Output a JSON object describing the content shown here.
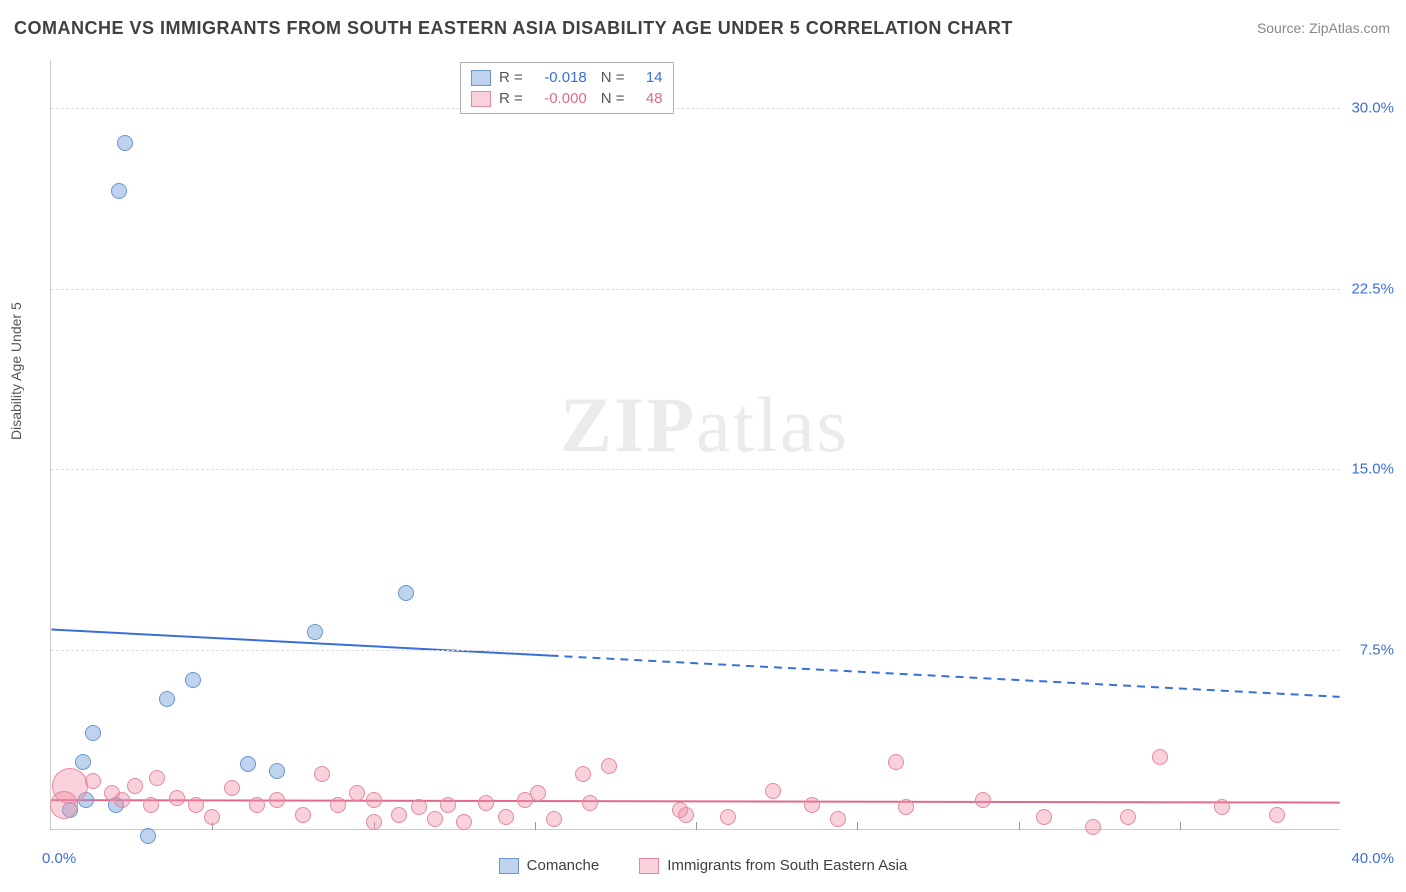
{
  "title": "COMANCHE VS IMMIGRANTS FROM SOUTH EASTERN ASIA DISABILITY AGE UNDER 5 CORRELATION CHART",
  "source_label": "Source: ZipAtlas.com",
  "ylabel": "Disability Age Under 5",
  "watermark": {
    "bold": "ZIP",
    "rest": "atlas"
  },
  "chart": {
    "type": "scatter",
    "xlim": [
      0,
      40
    ],
    "ylim": [
      0,
      32
    ],
    "x_tick_left": "0.0%",
    "x_tick_right": "40.0%",
    "x_minor_ticks": [
      5,
      10,
      15,
      20,
      25,
      30,
      35
    ],
    "y_ticks": [
      {
        "v": 7.5,
        "label": "7.5%"
      },
      {
        "v": 15.0,
        "label": "15.0%"
      },
      {
        "v": 22.5,
        "label": "22.5%"
      },
      {
        "v": 30.0,
        "label": "30.0%"
      }
    ],
    "background_color": "#ffffff",
    "grid_color": "#dddddd",
    "series": [
      {
        "name": "Comanche",
        "color_fill": "rgba(114,158,220,0.45)",
        "color_stroke": "#6a95d0",
        "value_color": "#3a6fd8",
        "marker_radius": 8,
        "R": "-0.018",
        "N": "14",
        "trend": {
          "y_at_x0": 8.3,
          "y_at_x40": 5.5,
          "solid_until_x": 15.5,
          "stroke": "#3a6fd8",
          "width": 2
        },
        "points": [
          {
            "x": 2.3,
            "y": 28.5
          },
          {
            "x": 2.1,
            "y": 26.5
          },
          {
            "x": 11.0,
            "y": 9.8
          },
          {
            "x": 8.2,
            "y": 8.2
          },
          {
            "x": 4.4,
            "y": 6.2
          },
          {
            "x": 3.6,
            "y": 5.4
          },
          {
            "x": 1.3,
            "y": 4.0
          },
          {
            "x": 6.1,
            "y": 2.7
          },
          {
            "x": 7.0,
            "y": 2.4
          },
          {
            "x": 1.0,
            "y": 2.8
          },
          {
            "x": 1.1,
            "y": 1.2
          },
          {
            "x": 2.0,
            "y": 1.0
          },
          {
            "x": 3.0,
            "y": -0.3
          },
          {
            "x": 0.6,
            "y": 0.8
          }
        ]
      },
      {
        "name": "Immigrants from South Eastern Asia",
        "color_fill": "rgba(240,140,165,0.40)",
        "color_stroke": "#e48aa0",
        "value_color": "#e06a8a",
        "marker_radius": 8,
        "R": "-0.000",
        "N": "48",
        "trend": {
          "y_at_x0": 1.2,
          "y_at_x40": 1.1,
          "solid_until_x": 40,
          "stroke": "#e06a8a",
          "width": 2
        },
        "points": [
          {
            "x": 0.6,
            "y": 1.8,
            "r": 18
          },
          {
            "x": 0.4,
            "y": 1.0,
            "r": 14
          },
          {
            "x": 1.3,
            "y": 2.0
          },
          {
            "x": 1.9,
            "y": 1.5
          },
          {
            "x": 2.2,
            "y": 1.2
          },
          {
            "x": 2.6,
            "y": 1.8
          },
          {
            "x": 3.1,
            "y": 1.0
          },
          {
            "x": 3.3,
            "y": 2.1
          },
          {
            "x": 3.9,
            "y": 1.3
          },
          {
            "x": 4.5,
            "y": 1.0
          },
          {
            "x": 5.0,
            "y": 0.5
          },
          {
            "x": 5.6,
            "y": 1.7
          },
          {
            "x": 6.4,
            "y": 1.0
          },
          {
            "x": 7.0,
            "y": 1.2
          },
          {
            "x": 7.8,
            "y": 0.6
          },
          {
            "x": 8.4,
            "y": 2.3
          },
          {
            "x": 8.9,
            "y": 1.0
          },
          {
            "x": 9.5,
            "y": 1.5
          },
          {
            "x": 10.0,
            "y": 0.3
          },
          {
            "x": 10.0,
            "y": 1.2
          },
          {
            "x": 10.8,
            "y": 0.6
          },
          {
            "x": 11.4,
            "y": 0.9
          },
          {
            "x": 11.9,
            "y": 0.4
          },
          {
            "x": 12.3,
            "y": 1.0
          },
          {
            "x": 12.8,
            "y": 0.3
          },
          {
            "x": 13.5,
            "y": 1.1
          },
          {
            "x": 14.1,
            "y": 0.5
          },
          {
            "x": 14.7,
            "y": 1.2
          },
          {
            "x": 15.1,
            "y": 1.5
          },
          {
            "x": 15.6,
            "y": 0.4
          },
          {
            "x": 16.5,
            "y": 2.3
          },
          {
            "x": 16.7,
            "y": 1.1
          },
          {
            "x": 17.3,
            "y": 2.6
          },
          {
            "x": 19.5,
            "y": 0.8
          },
          {
            "x": 19.7,
            "y": 0.6
          },
          {
            "x": 21.0,
            "y": 0.5
          },
          {
            "x": 22.4,
            "y": 1.6
          },
          {
            "x": 23.6,
            "y": 1.0
          },
          {
            "x": 24.4,
            "y": 0.4
          },
          {
            "x": 26.2,
            "y": 2.8
          },
          {
            "x": 26.5,
            "y": 0.9
          },
          {
            "x": 28.9,
            "y": 1.2
          },
          {
            "x": 30.8,
            "y": 0.5
          },
          {
            "x": 32.3,
            "y": 0.1
          },
          {
            "x": 33.4,
            "y": 0.5
          },
          {
            "x": 34.4,
            "y": 3.0
          },
          {
            "x": 36.3,
            "y": 0.9
          },
          {
            "x": 38.0,
            "y": 0.6
          }
        ]
      }
    ]
  }
}
